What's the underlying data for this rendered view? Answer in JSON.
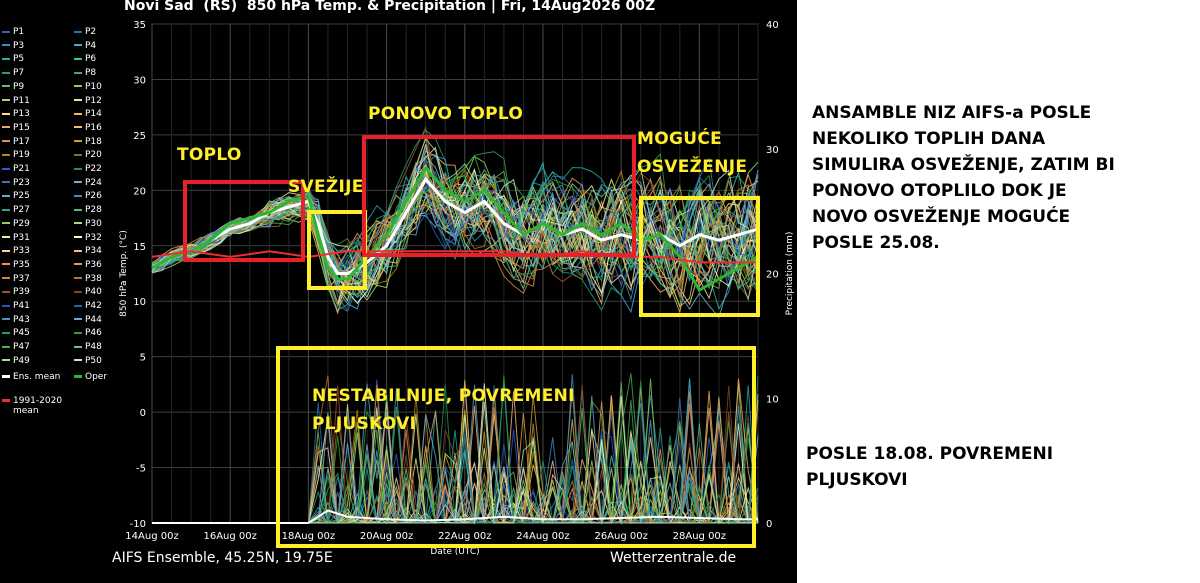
{
  "chart_data": {
    "type": "line",
    "title": "Novi Sad  (RS)  850 hPa Temp. & Precipitation | Fri, 14Aug2026 00Z",
    "ylabel_left": "850 hPa Temp. (°C)",
    "ylabel_right": "Precipitation (mm)",
    "xlabel": "Date (UTC)",
    "ylim_left": [
      -10,
      35
    ],
    "ylim_right": [
      0,
      40
    ],
    "yticks_left": [
      "35",
      "30",
      "25",
      "20",
      "15",
      "10",
      "5",
      "0",
      "-5",
      "-10"
    ],
    "yticks_right": [
      "40",
      "30",
      "20",
      "10",
      "0"
    ],
    "x_range_days": [
      0,
      15.5
    ],
    "xticks": [
      {
        "label": "14Aug 00z",
        "day": 0
      },
      {
        "label": "16Aug 00z",
        "day": 2
      },
      {
        "label": "18Aug 00z",
        "day": 4
      },
      {
        "label": "20Aug 00z",
        "day": 6
      },
      {
        "label": "22Aug 00z",
        "day": 8
      },
      {
        "label": "24Aug 00z",
        "day": 10
      },
      {
        "label": "26Aug 00z",
        "day": 12
      },
      {
        "label": "28Aug 00z",
        "day": 14
      }
    ],
    "grid": true,
    "series": [
      {
        "name": "Ens. mean",
        "color": "#ffffff",
        "x": [
          0,
          0.5,
          1,
          1.5,
          2,
          2.5,
          3,
          3.5,
          4,
          4.25,
          4.5,
          4.75,
          5,
          5.25,
          5.5,
          6,
          6.5,
          7,
          7.5,
          8,
          8.5,
          9,
          9.5,
          10,
          10.5,
          11,
          11.5,
          12,
          12.5,
          13,
          13.5,
          14,
          14.5,
          15,
          15.5
        ],
        "y": [
          13,
          14,
          14.5,
          15.5,
          16.5,
          17,
          18,
          18.5,
          19,
          17,
          14,
          12.5,
          12.5,
          13,
          13.5,
          15,
          18,
          21,
          19,
          18,
          19,
          17,
          16,
          17,
          16,
          16.5,
          15.5,
          16,
          15.5,
          16,
          15,
          16,
          15.5,
          16,
          16.5
        ]
      },
      {
        "name": "Oper",
        "color": "#2db52d",
        "x": [
          0,
          0.5,
          1,
          1.5,
          2,
          2.5,
          3,
          3.5,
          4,
          4.25,
          4.5,
          4.75,
          5,
          5.25,
          5.5,
          6,
          6.5,
          7,
          7.5,
          8,
          8.5,
          9,
          9.5,
          10,
          10.5,
          11,
          11.5,
          12,
          12.5,
          13,
          13.5,
          14,
          14.5,
          15,
          15.5
        ],
        "y": [
          13,
          14,
          14.5,
          15.5,
          17,
          17.5,
          18,
          19,
          19.5,
          16,
          13,
          12,
          12,
          13,
          14,
          16,
          19,
          22,
          20,
          19,
          20,
          18,
          16,
          17,
          16,
          17,
          16,
          17,
          15.5,
          16,
          14,
          11,
          12,
          13,
          14
        ]
      },
      {
        "name": "1991-2020 mean",
        "color": "#e83030",
        "x": [
          0,
          1,
          2,
          3,
          4,
          5,
          6,
          7,
          8,
          9,
          10,
          11,
          12,
          13,
          14,
          15,
          15.5
        ],
        "y": [
          14,
          14.5,
          14,
          14.5,
          14,
          14.5,
          14.5,
          14.5,
          14.5,
          14.5,
          14,
          14.5,
          14,
          14,
          13.5,
          13.5,
          13.5
        ]
      }
    ],
    "precipitation": {
      "name": "Ens. mean precipitation",
      "x": [
        0,
        4,
        4.25,
        4.5,
        5,
        6,
        7,
        8,
        9,
        10,
        11,
        12,
        13,
        14,
        15,
        15.5
      ],
      "y": [
        0,
        0,
        0.5,
        1,
        0.5,
        0.3,
        0.2,
        0.3,
        0.5,
        0.3,
        0.3,
        0.4,
        0.5,
        0.4,
        0.3,
        0.3
      ]
    },
    "legend_placement": "left"
  },
  "legend": {
    "items": [
      "P1",
      "P2",
      "P3",
      "P4",
      "P5",
      "P6",
      "P7",
      "P8",
      "P9",
      "P10",
      "P11",
      "P12",
      "P13",
      "P14",
      "P15",
      "P16",
      "P17",
      "P18",
      "P19",
      "P20",
      "P21",
      "P22",
      "P23",
      "P24",
      "P25",
      "P26",
      "P27",
      "P28",
      "P29",
      "P30",
      "P31",
      "P32",
      "P33",
      "P34",
      "P35",
      "P36",
      "P37",
      "P38",
      "P39",
      "P40",
      "P41",
      "P42",
      "P43",
      "P44",
      "P45",
      "P46",
      "P47",
      "P48",
      "P49",
      "P50"
    ],
    "colors": [
      "#3a5fcd",
      "#1f78b4",
      "#2d8fd5",
      "#4aa3df",
      "#20b2aa",
      "#36c2b4",
      "#2ca25f",
      "#41ab5d",
      "#66bd63",
      "#8fd14f",
      "#a6d96a",
      "#d9ef8b",
      "#fee08b",
      "#fdae61",
      "#f4a261",
      "#e9c46a",
      "#d99058",
      "#c9a227",
      "#b8860b",
      "#8c6d31",
      "#2b5fd9",
      "#1a9850",
      "#4575b4",
      "#74add1",
      "#5fa8d3",
      "#3690c0",
      "#2ca58d",
      "#48bf84",
      "#91cf60",
      "#b3de69",
      "#e6f598",
      "#ffffbf",
      "#fdd49e",
      "#fdbb84",
      "#fc8d59",
      "#e6a04c",
      "#cc8a3c",
      "#b2762c",
      "#a0522d",
      "#7f4a28",
      "#3b4cc0",
      "#2166ac",
      "#4393c3",
      "#67a9cf",
      "#1b9e77",
      "#33a02c",
      "#4daf4a",
      "#66c2a5",
      "#abdda4",
      "#c7e9c0"
    ],
    "ens_mean_label": "Ens. mean",
    "oper_label": "Oper",
    "climate_label_1": "1991-2020",
    "climate_label_2": "mean"
  },
  "footer": {
    "left": "AIFS Ensemble, 45.25N, 19.75E",
    "right": "Wetterzentrale.de"
  },
  "annotations": {
    "toplo": "TOPLO",
    "svezije": "SVEŽIJE",
    "ponovo_toplo": "PONOVO TOPLO",
    "moguce_line1": "MOGUĆE",
    "moguce_line2": "OSVEŽENJE",
    "nestabilnije_line1": "NESTABILNIJE, POVREMENI",
    "nestabilnije_line2": "PLJUSKOVI",
    "red_color": "#e8202a",
    "yellow_color": "#ffef2a"
  },
  "side_notes": {
    "main": [
      "ANSAMBLE NIZ AIFS-a POSLE",
      "NEKOLIKO TOPLIH DANA",
      "SIMULIRA OSVEŽENJE, ZATIM BI",
      "PONOVO OTOPLILO DOK JE",
      "NOVO OSVEŽENJE MOGUĆE",
      "POSLE 25.08."
    ],
    "secondary": [
      "POSLE 18.08. POVREMENI",
      "PLJUSKOVI"
    ]
  }
}
